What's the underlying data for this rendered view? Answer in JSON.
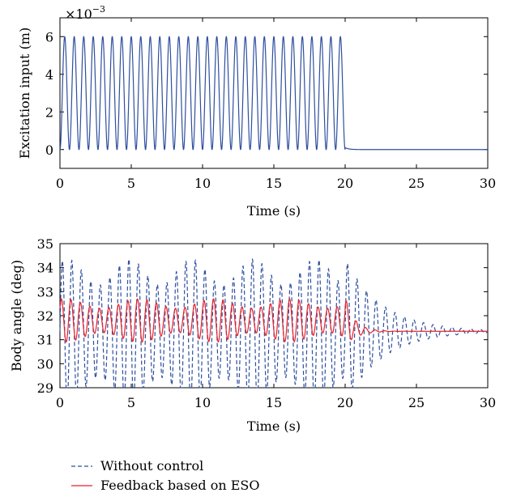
{
  "chart_data": [
    {
      "type": "line",
      "xlabel": "Time (s)",
      "ylabel": "Excitation input (m)",
      "scale_label": "×10",
      "scale_exponent": "−3",
      "xlim": [
        0,
        30
      ],
      "ylim": [
        -1,
        7
      ],
      "xticks": [
        "0",
        "5",
        "10",
        "15",
        "20",
        "25",
        "30"
      ],
      "yticks": [
        "0",
        "2",
        "4",
        "6"
      ],
      "series": [
        {
          "color": "#2e4f9e",
          "style": "solid",
          "description": "sinusoid between 0 and 6 (×10^-3 m), frequency 1.5 Hz for 0–20 s, then decays to 0",
          "points": [
            [
              0,
              0
            ],
            [
              0.33,
              6
            ],
            [
              0.67,
              0
            ],
            [
              1.0,
              6
            ],
            [
              19.67,
              6
            ],
            [
              20,
              0
            ],
            [
              20.3,
              0.1
            ],
            [
              30,
              0
            ]
          ]
        }
      ]
    },
    {
      "type": "line",
      "xlabel": "Time (s)",
      "ylabel": "Body angle (deg)",
      "xlim": [
        0,
        30
      ],
      "ylim": [
        29,
        35
      ],
      "xticks": [
        "0",
        "5",
        "10",
        "15",
        "20",
        "25",
        "30"
      ],
      "yticks": [
        "29",
        "30",
        "31",
        "32",
        "33",
        "34",
        "35"
      ],
      "series": [
        {
          "legend_ref": "legend.items.0",
          "color": "#2e4f9e",
          "style": "dashed",
          "center": 31.35,
          "amplitude": 3.0,
          "frequency_hz": 1.5,
          "decays_after": 20
        },
        {
          "legend_ref": "legend.items.1",
          "color": "#e8202a",
          "style": "solid",
          "center": 31.8,
          "amplitude": 0.9,
          "frequency_hz": 1.5,
          "final_value": 31.35,
          "decays_after": 20
        }
      ]
    }
  ],
  "legend": {
    "items": [
      {
        "label": "Without control",
        "color": "#2e4f9e",
        "style": "dashed"
      },
      {
        "label": "Feedback based on ESO",
        "color": "#e8202a",
        "style": "solid"
      }
    ]
  }
}
